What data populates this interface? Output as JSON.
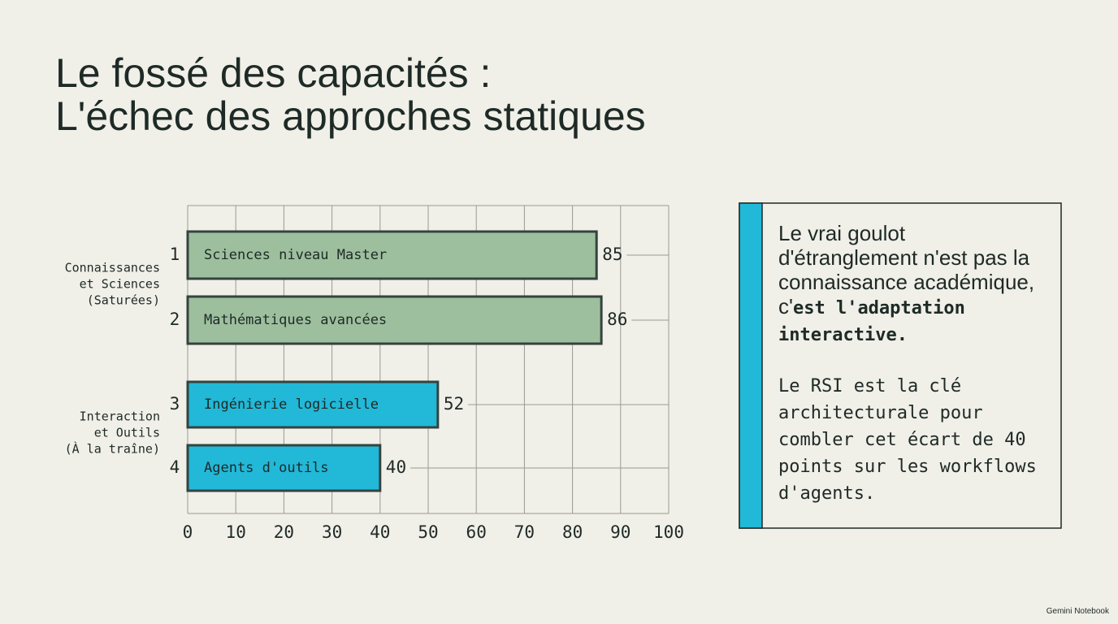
{
  "title": [
    "Le fossé des capacités :",
    "L'échec des approches statiques"
  ],
  "chart_data": {
    "type": "bar",
    "orientation": "horizontal",
    "categories": [
      "Sciences niveau Master",
      "Mathématiques avancées",
      "Ingénierie logicielle",
      "Agents d'outils"
    ],
    "ranks": [
      1,
      2,
      3,
      4
    ],
    "values": [
      85,
      86,
      52,
      40
    ],
    "colors": [
      "#9dbf9e",
      "#9dbf9e",
      "#22b8d8",
      "#22b8d8"
    ],
    "groups": [
      [
        "Connaissances",
        "et Sciences",
        "(Saturées)"
      ],
      [
        "Interaction",
        "et Outils",
        "(À la traîne)"
      ]
    ],
    "xlim": [
      0,
      100
    ],
    "xticks": [
      0,
      10,
      20,
      30,
      40,
      50,
      60,
      70,
      80,
      90,
      100
    ],
    "grid": true
  },
  "callout": {
    "paragraphs": [
      [
        {
          "text": "Le vrai goulot d'étranglement n'est pas la connaissance académique, c'",
          "font": "sans"
        },
        {
          "text": "est l'adaptation interactive.",
          "font": "mono-bold"
        }
      ],
      [
        {
          "text": "Le RSI est la clé architecturale pour combler cet écart de 40 points sur les workflows d'agents.",
          "font": "mono"
        }
      ]
    ]
  },
  "footer": "Gemini Notebook"
}
